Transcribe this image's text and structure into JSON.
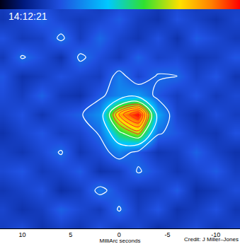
{
  "chart_data": {
    "type": "heatmap",
    "x_label": "MilliArc seconds",
    "annotations": [
      "14:12:21",
      "Credit: J Miller–Jones"
    ],
    "x": [
      -12,
      -10,
      -8,
      -6,
      -4,
      -2,
      0,
      2,
      4,
      6,
      8,
      10,
      12
    ],
    "y": [
      -12,
      -10,
      -8,
      -6,
      -4,
      -2,
      0,
      2,
      4,
      6,
      8,
      10,
      12
    ],
    "cells": [
      [
        0.22,
        0.18,
        0.24,
        0.2,
        0.16,
        0.23,
        0.19,
        0.25,
        0.18,
        0.21,
        0.17,
        0.24,
        0.2
      ],
      [
        0.18,
        0.25,
        0.2,
        0.17,
        0.26,
        0.2,
        0.3,
        0.19,
        0.23,
        0.28,
        0.2,
        0.17,
        0.22
      ],
      [
        0.24,
        0.19,
        0.16,
        0.27,
        0.2,
        0.18,
        0.24,
        0.32,
        0.2,
        0.16,
        0.25,
        0.21,
        0.18
      ],
      [
        0.2,
        0.27,
        0.22,
        0.18,
        0.24,
        0.3,
        0.2,
        0.17,
        0.27,
        0.22,
        0.19,
        0.26,
        0.23
      ],
      [
        0.17,
        0.21,
        0.28,
        0.2,
        0.18,
        0.26,
        0.34,
        0.24,
        0.18,
        0.3,
        0.23,
        0.18,
        0.21
      ],
      [
        0.25,
        0.18,
        0.2,
        0.26,
        0.3,
        0.7,
        0.56,
        0.3,
        0.22,
        0.2,
        0.26,
        0.22,
        0.17
      ],
      [
        0.2,
        0.24,
        0.17,
        0.22,
        0.4,
        1.0,
        0.82,
        0.36,
        0.28,
        0.24,
        0.18,
        0.25,
        0.21
      ],
      [
        0.23,
        0.19,
        0.26,
        0.2,
        0.26,
        0.38,
        0.34,
        0.27,
        0.17,
        0.19,
        0.28,
        0.2,
        0.24
      ],
      [
        0.18,
        0.26,
        0.21,
        0.29,
        0.3,
        0.22,
        0.33,
        0.2,
        0.22,
        0.25,
        0.2,
        0.17,
        0.26
      ],
      [
        0.26,
        0.2,
        0.18,
        0.23,
        0.21,
        0.28,
        0.19,
        0.24,
        0.31,
        0.17,
        0.24,
        0.3,
        0.19
      ],
      [
        0.19,
        0.23,
        0.27,
        0.17,
        0.25,
        0.18,
        0.22,
        0.29,
        0.2,
        0.31,
        0.21,
        0.19,
        0.25
      ],
      [
        0.22,
        0.17,
        0.21,
        0.25,
        0.17,
        0.2,
        0.27,
        0.22,
        0.19,
        0.22,
        0.28,
        0.23,
        0.18
      ],
      [
        0.2,
        0.24,
        0.19,
        0.22,
        0.2,
        0.24,
        0.21,
        0.18,
        0.26,
        0.19,
        0.22,
        0.26,
        0.2
      ]
    ],
    "colorbar_range": [
      0,
      1
    ],
    "contours": {
      "start": 0.29,
      "end": 0.59,
      "size": 0.15
    },
    "core_contours": {
      "start": 0.68,
      "end": 0.98,
      "size": 0.06
    },
    "xlim": [
      12.3,
      -12.5
    ],
    "ylim": [
      -12,
      12
    ],
    "xticks": [
      10,
      5,
      0,
      -5,
      -10
    ],
    "tick_labels": "x",
    "grid": false
  }
}
